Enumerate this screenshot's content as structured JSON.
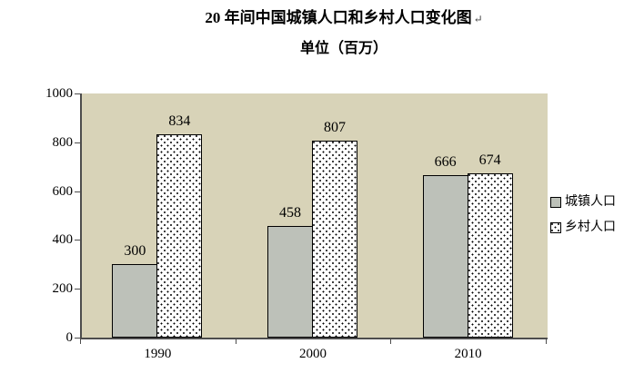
{
  "return_mark": "↵",
  "chart_data": {
    "type": "bar",
    "title": "20 年间中国城镇人口和乡村人口变化图",
    "subtitle": "单位（百万）",
    "categories": [
      "1990",
      "2000",
      "2010"
    ],
    "series": [
      {
        "name": "城镇人口",
        "values": [
          300,
          458,
          666
        ],
        "fill": "#bdc1b9",
        "pattern": "solid"
      },
      {
        "name": "乡村人口",
        "values": [
          834,
          807,
          674
        ],
        "fill": "#ffffff",
        "pattern": "dots"
      }
    ],
    "data_labels": [
      [
        300,
        458,
        666
      ],
      [
        834,
        807,
        674
      ]
    ],
    "ylim": [
      0,
      1000
    ],
    "yticks": [
      0,
      200,
      400,
      600,
      800,
      1000
    ],
    "grid": false,
    "legend_position": "right",
    "plot_background": "#d8d3b8",
    "axis_color": "#4d4d4d",
    "bar_border_color": "#000000"
  }
}
